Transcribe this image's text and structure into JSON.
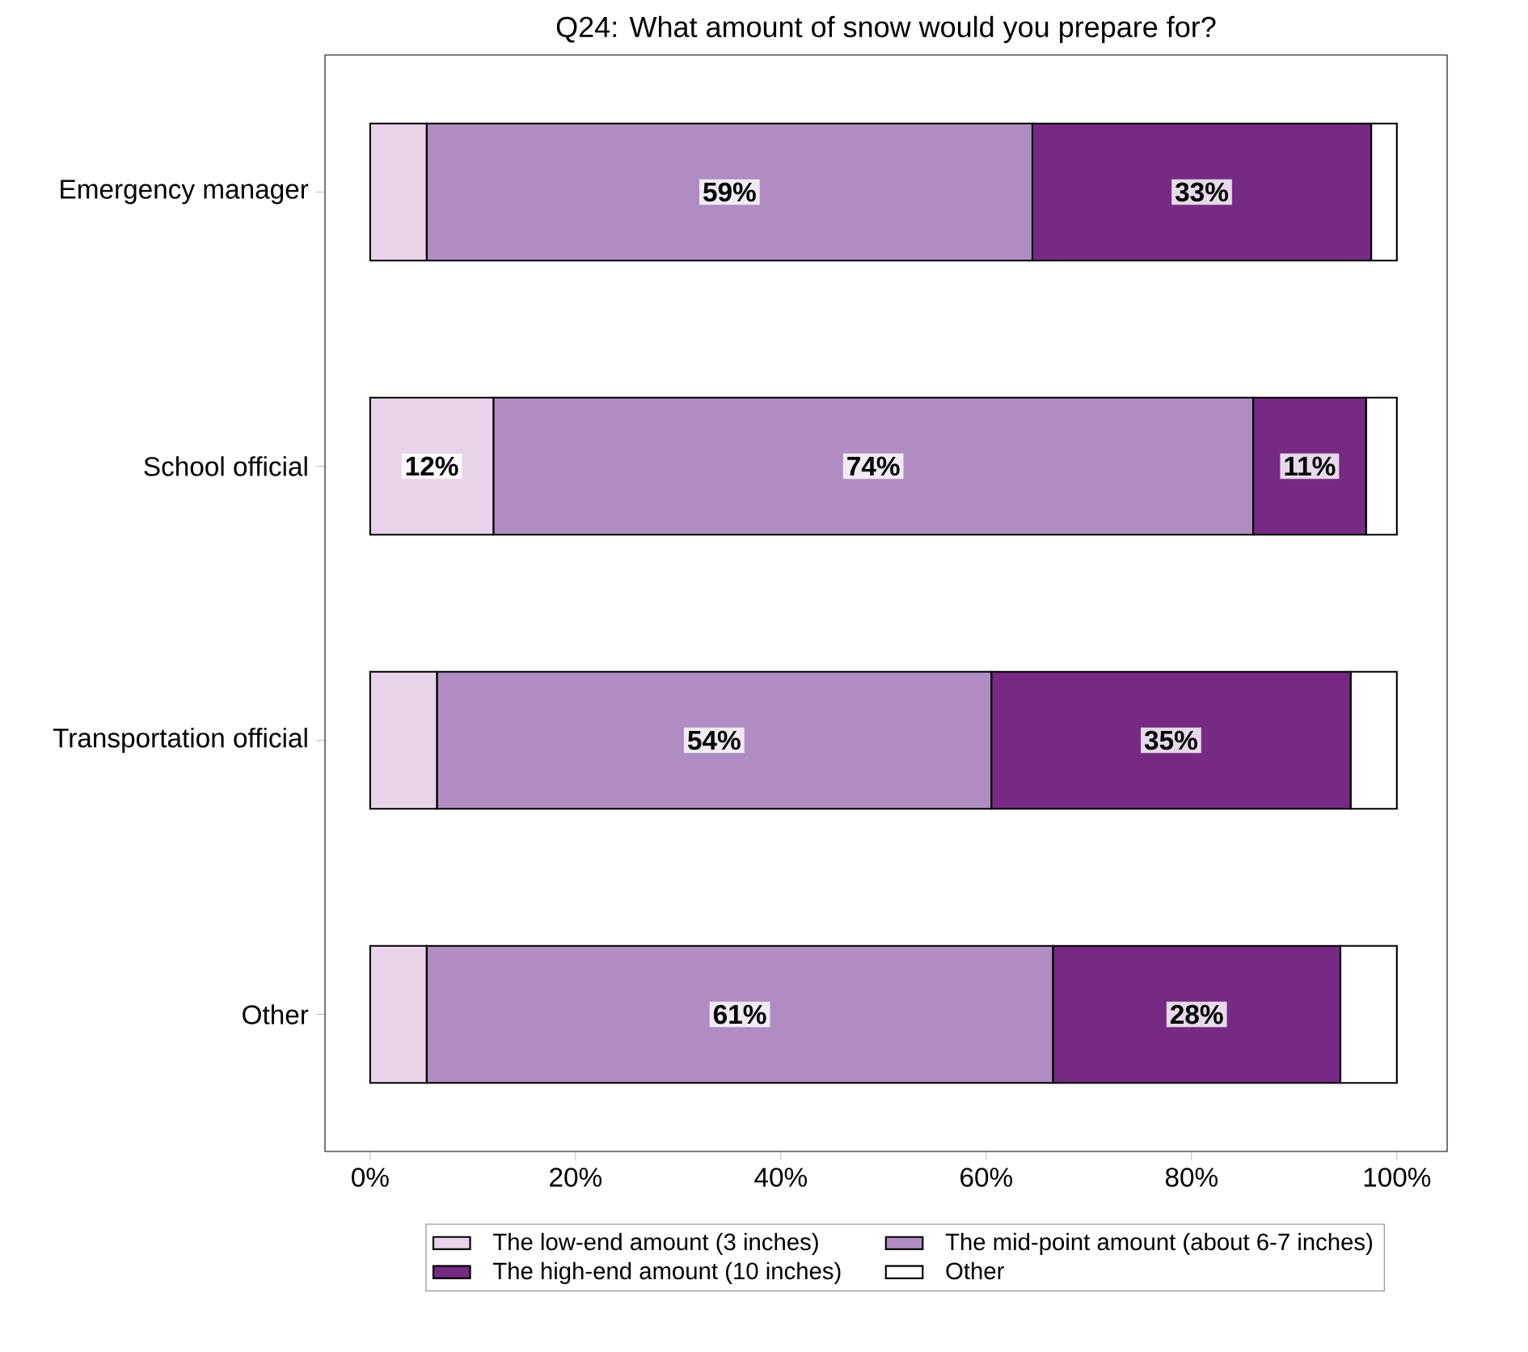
{
  "chart_data": {
    "type": "bar",
    "orientation": "horizontal",
    "stacked": true,
    "title": "Q24: What amount of snow would you prepare for?",
    "categories": [
      "Emergency manager",
      "School official",
      "Transportation official",
      "Other"
    ],
    "series": [
      {
        "name": "The low-end amount (3 inches)",
        "color": "#e7d4e8",
        "values": [
          5.5,
          12,
          6.5,
          5.5
        ],
        "value_labels": [
          null,
          "12%",
          null,
          null
        ]
      },
      {
        "name": "The mid-point amount (about 6-7 inches)",
        "color": "#af8dc3",
        "values": [
          59,
          74,
          54,
          61
        ],
        "value_labels": [
          "59%",
          "74%",
          "54%",
          "61%"
        ]
      },
      {
        "name": "The high-end amount (10 inches)",
        "color": "#762a83",
        "values": [
          33,
          11,
          35,
          28
        ],
        "value_labels": [
          "33%",
          "11%",
          "35%",
          "28%"
        ]
      },
      {
        "name": "Other",
        "color": "#ffffff",
        "values": [
          2.5,
          3,
          4.5,
          5.5
        ],
        "value_labels": [
          null,
          null,
          null,
          null
        ]
      }
    ],
    "xlim": [
      -4.4,
      104.9
    ],
    "xticks": [
      {
        "value": 0,
        "label": "0%"
      },
      {
        "value": 20,
        "label": "20%"
      },
      {
        "value": 40,
        "label": "40%"
      },
      {
        "value": 60,
        "label": "60%"
      },
      {
        "value": 80,
        "label": "80%"
      },
      {
        "value": 100,
        "label": "100%"
      }
    ],
    "legend": "bottom"
  }
}
